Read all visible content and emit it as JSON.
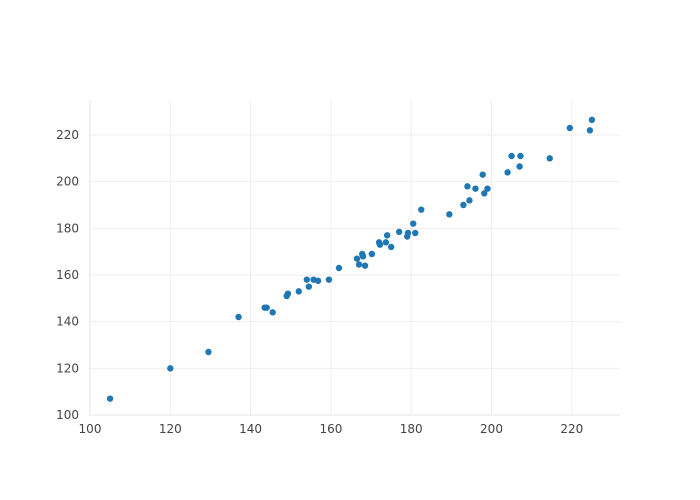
{
  "chart_data": {
    "type": "scatter",
    "title": "",
    "xlabel": "",
    "ylabel": "",
    "xlim": [
      100,
      232
    ],
    "ylim": [
      100,
      235
    ],
    "grid": true,
    "legend": false,
    "x_ticks": [
      100,
      120,
      140,
      160,
      180,
      200,
      220
    ],
    "y_ticks": [
      100,
      120,
      140,
      160,
      180,
      200,
      220
    ],
    "x_tick_labels": [
      "100",
      "120",
      "140",
      "160",
      "180",
      "200",
      "220"
    ],
    "y_tick_labels": [
      "100",
      "120",
      "140",
      "160",
      "180",
      "200",
      "220"
    ],
    "colors": {
      "marker": "#1f77b4"
    },
    "series": [
      {
        "x": [
          105,
          120,
          129.5,
          137,
          143.5,
          144,
          145.5,
          149,
          149.3,
          152,
          154,
          154.5,
          155.7,
          156.8,
          159.5,
          162,
          166.5,
          167,
          167.8,
          168,
          168.5,
          170.2,
          172,
          172.2,
          173.7,
          174,
          175,
          177,
          179,
          179.2,
          180.5,
          181,
          182.5,
          189.5,
          193,
          194,
          194.5,
          196,
          197.8,
          198.2,
          199,
          204,
          205,
          207,
          207.2,
          214.5,
          219.5,
          224.5,
          225
        ],
        "y": [
          107,
          120,
          127,
          142,
          146,
          146,
          144,
          151,
          152,
          153,
          158,
          155,
          158,
          157.5,
          158,
          163,
          167,
          164.5,
          169,
          168,
          164,
          169,
          174,
          173,
          174,
          177,
          172,
          178.5,
          176.5,
          178,
          182,
          178,
          188,
          186,
          190,
          198,
          192,
          197,
          203,
          195,
          197,
          204,
          211,
          206.5,
          211,
          210,
          223,
          222,
          226.5
        ]
      }
    ]
  }
}
